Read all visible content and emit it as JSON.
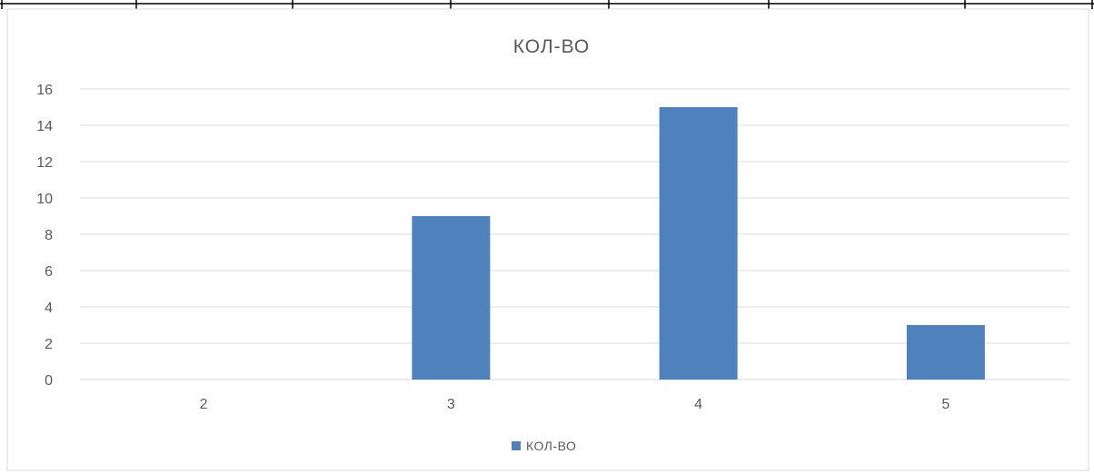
{
  "chart_data": {
    "type": "bar",
    "title": "КОЛ-ВО",
    "categories": [
      "2",
      "3",
      "4",
      "5"
    ],
    "series": [
      {
        "name": "КОЛ-ВО",
        "values": [
          0,
          9,
          15,
          3
        ],
        "color": "#4f81bd"
      }
    ],
    "y_ticks": [
      "0",
      "2",
      "4",
      "6",
      "8",
      "10",
      "12",
      "14",
      "16"
    ],
    "ylim": [
      0,
      16
    ],
    "grid": true,
    "legend_position": "bottom",
    "xlabel": "",
    "ylabel": ""
  },
  "colors": {
    "bar": "#4f81bd",
    "grid": "#d9d9d9",
    "axis": "#d9d9d9",
    "text": "#595959",
    "frame": "#000000"
  }
}
